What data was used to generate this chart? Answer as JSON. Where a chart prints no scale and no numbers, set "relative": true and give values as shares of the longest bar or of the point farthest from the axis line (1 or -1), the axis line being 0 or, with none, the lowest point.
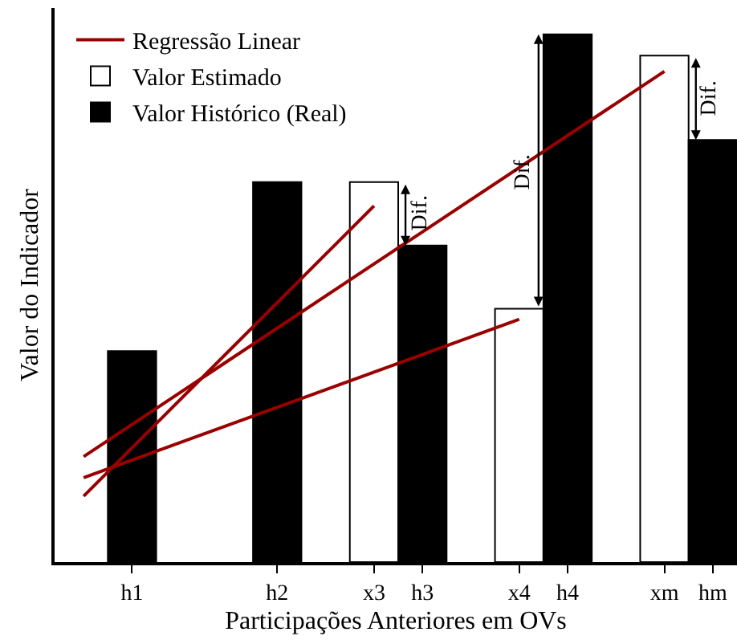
{
  "chart_data": {
    "type": "bar",
    "relative": true,
    "xlabel": "Participações Anteriores em OVs",
    "ylabel": "Valor do Indicador",
    "categories": [
      null,
      "h1",
      null,
      null,
      "h2",
      null,
      "x3",
      "h3",
      null,
      "x4",
      "h4",
      null,
      "xm",
      "hm"
    ],
    "series": [
      {
        "name": "Regressão Linear",
        "type": "line",
        "color": "#990000",
        "values": [
          0.125,
          null,
          null,
          null,
          null,
          null,
          0.675,
          null,
          null,
          null,
          null,
          null,
          null,
          null
        ]
      },
      {
        "type": "line",
        "color": "#990000",
        "values": [
          0.2,
          null,
          null,
          null,
          null,
          null,
          null,
          null,
          null,
          null,
          null,
          null,
          0.93,
          null
        ]
      },
      {
        "type": "line",
        "color": "#990000",
        "values": [
          0.16,
          null,
          null,
          null,
          null,
          null,
          null,
          null,
          null,
          0.46,
          null,
          null,
          null,
          null
        ]
      },
      {
        "name": "Valor Estimado",
        "color": "#ffffff",
        "values": [
          null,
          null,
          null,
          null,
          null,
          null,
          0.72,
          null,
          null,
          0.48,
          null,
          null,
          0.96,
          null
        ]
      },
      {
        "name": "Valor Histórico (Real)",
        "color": "#000000",
        "values": [
          null,
          0.4,
          null,
          null,
          0.72,
          null,
          null,
          0.6,
          null,
          null,
          1.0,
          null,
          null,
          0.8
        ]
      }
    ],
    "annotations": [
      "Dif.",
      "Dif.",
      "Dif."
    ],
    "legend": "top left",
    "line_style": "solid",
    "marker": "none"
  }
}
